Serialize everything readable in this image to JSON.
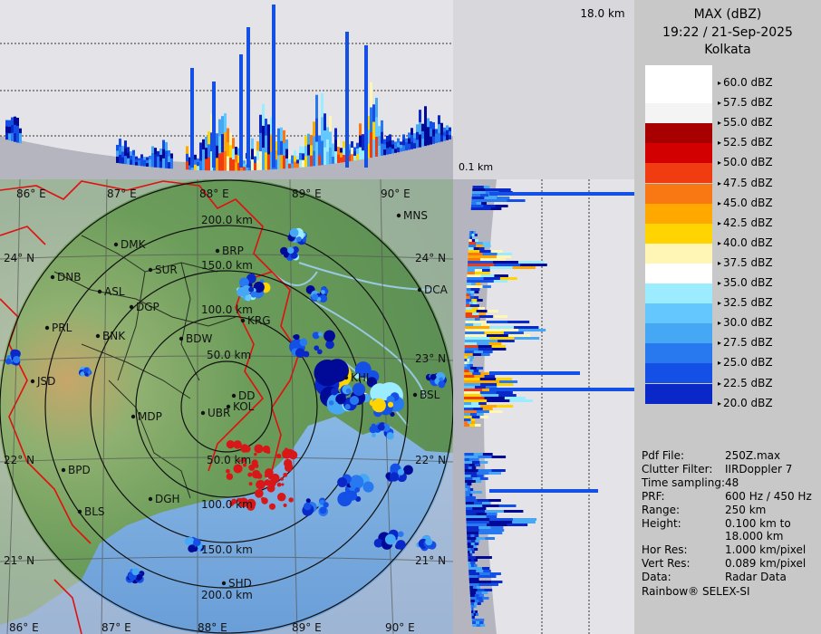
{
  "product": {
    "title": "MAX (dBZ)",
    "datetime": "19:22 / 21-Sep-2025",
    "station": "Kolkata"
  },
  "top_panel": {
    "max_height_label": "18.0 km",
    "min_height_label": "0.1 km"
  },
  "color_scale": [
    {
      "label": "60.0 dBZ",
      "color": "#ffffff"
    },
    {
      "label": "57.5 dBZ",
      "color": "#f4f4f4"
    },
    {
      "label": "55.0 dBZ",
      "color": "#a80000"
    },
    {
      "label": "52.5 dBZ",
      "color": "#d20000"
    },
    {
      "label": "50.0 dBZ",
      "color": "#f03c10"
    },
    {
      "label": "47.5 dBZ",
      "color": "#fa7814"
    },
    {
      "label": "45.0 dBZ",
      "color": "#ffa800"
    },
    {
      "label": "42.5 dBZ",
      "color": "#ffd400"
    },
    {
      "label": "40.0 dBZ",
      "color": "#fff5b4"
    },
    {
      "label": "37.5 dBZ",
      "color": "#ffffff"
    },
    {
      "label": "35.0 dBZ",
      "color": "#9cecff"
    },
    {
      "label": "32.5 dBZ",
      "color": "#64c8ff"
    },
    {
      "label": "30.0 dBZ",
      "color": "#46a8f5"
    },
    {
      "label": "27.5 dBZ",
      "color": "#2878f0"
    },
    {
      "label": "25.0 dBZ",
      "color": "#1450e6"
    },
    {
      "label": "22.5 dBZ",
      "color": "#0a28c8"
    },
    {
      "label": "20.0 dBZ",
      "color": "#000a96"
    }
  ],
  "info": [
    {
      "key": "Pdf File:",
      "value": "250Z.max"
    },
    {
      "key": "Clutter Filter:",
      "value": "IIRDoppler 7"
    },
    {
      "key": "Time sampling:",
      "value": "48"
    },
    {
      "key": "PRF:",
      "value": "600 Hz / 450 Hz"
    },
    {
      "key": "Range:",
      "value": "250 km"
    },
    {
      "key": "Height:",
      "value": "0.100 km to"
    },
    {
      "key": "",
      "value": "18.000 km"
    },
    {
      "key": "Hor Res:",
      "value": "1.000 km/pixel"
    },
    {
      "key": "Vert Res:",
      "value": "0.089 km/pixel"
    },
    {
      "key": "Data:",
      "value": "Radar Data"
    }
  ],
  "footer": "Rainbow® SELEX-SI",
  "map": {
    "lon_labels": [
      "86° E",
      "87° E",
      "88° E",
      "89° E",
      "90° E"
    ],
    "lat_labels": [
      "24° N",
      "23° N",
      "22° N",
      "21° N"
    ],
    "range_rings": [
      "50.0 km",
      "100.0 km",
      "150.0 km",
      "200.0 km"
    ],
    "cities": [
      "MNS",
      "DMK",
      "BRP",
      "DNB",
      "SUR",
      "ASL",
      "DGP",
      "DCA",
      "KRG",
      "PRL",
      "BNK",
      "BDW",
      "KHL",
      "BSL",
      "JSD",
      "DD",
      "KOL",
      "MDP",
      "UBR",
      "BPD",
      "DGH",
      "BLS",
      "SHD"
    ]
  }
}
